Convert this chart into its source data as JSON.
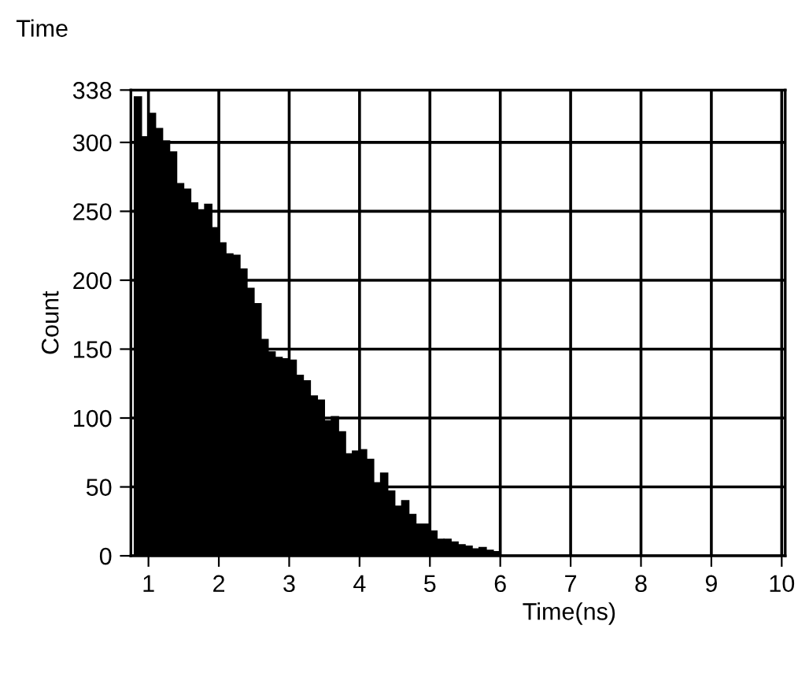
{
  "chart_data": {
    "type": "histogram",
    "title": "Time",
    "xlabel": "Time(ns)",
    "ylabel": "Count",
    "color": "#000000",
    "bins": [
      0.8,
      0.9,
      1.0,
      1.1,
      1.2,
      1.3,
      1.4,
      1.5,
      1.6,
      1.7,
      1.8,
      1.9,
      2.0,
      2.1,
      2.2,
      2.3,
      2.4,
      2.5,
      2.6,
      2.7,
      2.8,
      2.9,
      3.0,
      3.1,
      3.2,
      3.3,
      3.4,
      3.5,
      3.6,
      3.7,
      3.8,
      3.9,
      4.0,
      4.1,
      4.2,
      4.3,
      4.4,
      4.5,
      4.6,
      4.7,
      4.8,
      4.9,
      5.0,
      5.1,
      5.2,
      5.3,
      5.4,
      5.5,
      5.6,
      5.7,
      5.8,
      5.9,
      6.0,
      10
    ],
    "values": [
      333,
      304,
      321,
      310,
      301,
      293,
      270,
      266,
      256,
      251,
      255,
      238,
      227,
      219,
      218,
      208,
      194,
      183,
      157,
      148,
      144,
      143,
      142,
      131,
      127,
      116,
      113,
      98,
      101,
      90,
      74,
      76,
      77,
      70,
      53,
      60,
      47,
      36,
      40,
      30,
      23,
      23,
      18,
      12,
      12,
      10,
      8,
      7,
      5,
      6,
      4,
      3,
      0
    ],
    "xlim": [
      0.75,
      10.05
    ],
    "ylim": [
      0,
      338
    ],
    "xticks": [
      1,
      2,
      3,
      4,
      5,
      6,
      7,
      8,
      9,
      10
    ],
    "yticks": [
      0,
      50,
      100,
      150,
      200,
      250,
      300,
      338
    ],
    "grid": true
  }
}
